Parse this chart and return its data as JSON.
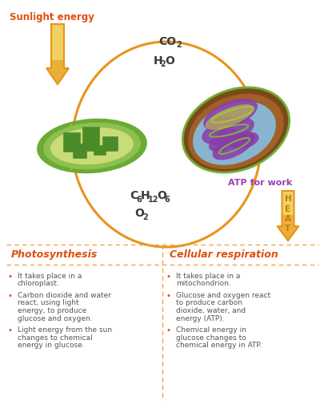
{
  "bg_color": "#ffffff",
  "arrow_color": "#E8941A",
  "sunlight_text": "Sunlight energy",
  "sunlight_text_color": "#E05010",
  "atp_text": "ATP for work",
  "atp_color": "#9B3DB0",
  "heat_text": "HEAT",
  "heat_color": "#C8780A",
  "divider_color": "#F0A840",
  "photo_title": "Photosynthesis",
  "resp_title": "Cellular respiration",
  "title_color": "#E05010",
  "bullet_color": "#E05010",
  "text_color": "#555555",
  "label_color": "#3A3A3A",
  "photo_bullets": [
    "It takes place in a chloroplast.",
    "Carbon dioxide and water react, using light energy, to produce glucose and oxygen.",
    "Light energy from the sun changes to chemical energy in glucose."
  ],
  "resp_bullets": [
    "It takes place in a mitochondrion.",
    "Glucose and oxygen react to produce carbon dioxide, water, and energy (ATP).",
    "Chemical energy in glucose changes to chemical energy in ATP."
  ],
  "chloroplast_outer": "#6AAB35",
  "chloroplast_mid": "#8DC050",
  "chloroplast_inner_bg": "#C8DC78",
  "chloroplast_thylakoid": "#4A8A28",
  "mito_outer": "#7B4A18",
  "mito_outer2": "#A06028",
  "mito_inner_bg": "#88B4D0",
  "mito_cristae_purple": "#8B3AAA",
  "mito_cristae_green": "#80B840",
  "mito_highlight": "#C8D838"
}
